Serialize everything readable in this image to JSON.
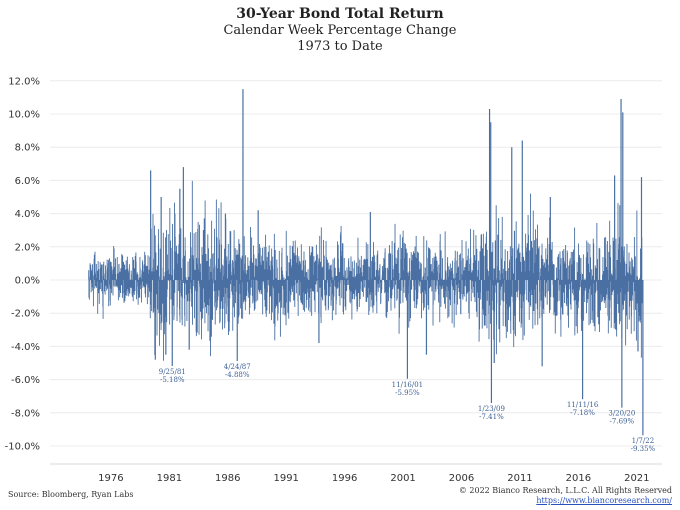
{
  "header": {
    "title": "30-Year Bond Total Return",
    "subtitle": "Calendar Week Percentage Change",
    "period": "1973 to Date"
  },
  "footer": {
    "source": "Source: Bloomberg, Ryan Labs",
    "copyright": "© 2022 Bianco Research, L.L.C. All Rights Reserved",
    "website": "https://www.biancoresearch.com/"
  },
  "chart_data": {
    "type": "bar",
    "series_color": "#4a70a3",
    "x_range": [
      1973.0,
      2022.2
    ],
    "ylim": [
      -11,
      13
    ],
    "yticks": [
      -10,
      -8,
      -6,
      -4,
      -2,
      0,
      2,
      4,
      6,
      8,
      10,
      12
    ],
    "ytick_labels": [
      "-10.0%",
      "-8.0%",
      "-6.0%",
      "-4.0%",
      "-2.0%",
      "0.0%",
      "2.0%",
      "4.0%",
      "6.0%",
      "8.0%",
      "10.0%",
      "12.0%"
    ],
    "xticks": [
      1976,
      1981,
      1986,
      1991,
      1996,
      2001,
      2006,
      2011,
      2016,
      2021
    ],
    "xtick_labels": [
      "1976",
      "1981",
      "1986",
      "1991",
      "1996",
      "2001",
      "2006",
      "2011",
      "2016",
      "2021"
    ],
    "grid": true,
    "volatility_regimes": [
      {
        "start": 1973.0,
        "end": 1979.8,
        "amplitude": 0.9
      },
      {
        "start": 1979.8,
        "end": 1986.0,
        "amplitude": 2.3
      },
      {
        "start": 1986.0,
        "end": 1988.0,
        "amplitude": 1.8
      },
      {
        "start": 1988.0,
        "end": 1994.0,
        "amplitude": 1.4
      },
      {
        "start": 1994.0,
        "end": 2008.0,
        "amplitude": 1.3
      },
      {
        "start": 2008.0,
        "end": 2013.0,
        "amplitude": 2.0
      },
      {
        "start": 2013.0,
        "end": 2019.0,
        "amplitude": 1.6
      },
      {
        "start": 2019.0,
        "end": 2020.6,
        "amplitude": 2.4
      },
      {
        "start": 2020.6,
        "end": 2022.2,
        "amplitude": 1.8
      }
    ],
    "notable_spikes": [
      {
        "x": 1979.9,
        "y": 6.6
      },
      {
        "x": 1980.3,
        "y": -4.8
      },
      {
        "x": 1980.8,
        "y": 5.0
      },
      {
        "x": 1981.2,
        "y": -4.5
      },
      {
        "x": 1982.4,
        "y": 5.5
      },
      {
        "x": 1982.7,
        "y": 6.8
      },
      {
        "x": 1983.2,
        "y": -4.2
      },
      {
        "x": 1987.8,
        "y": 11.5
      },
      {
        "x": 1986.3,
        "y": 4.0
      },
      {
        "x": 1989.1,
        "y": 4.2
      },
      {
        "x": 1994.3,
        "y": -3.8
      },
      {
        "x": 1998.7,
        "y": 4.1
      },
      {
        "x": 2003.5,
        "y": -4.5
      },
      {
        "x": 2008.9,
        "y": 10.3
      },
      {
        "x": 2009.0,
        "y": 9.5
      },
      {
        "x": 2009.3,
        "y": -5.0
      },
      {
        "x": 2010.8,
        "y": 8.0
      },
      {
        "x": 2011.7,
        "y": 8.4
      },
      {
        "x": 2013.4,
        "y": -5.2
      },
      {
        "x": 2014.1,
        "y": 5.0
      },
      {
        "x": 2019.6,
        "y": 6.3
      },
      {
        "x": 2020.15,
        "y": 10.9
      },
      {
        "x": 2020.3,
        "y": 10.1
      },
      {
        "x": 2021.9,
        "y": 6.2
      },
      {
        "x": 2021.6,
        "y": -4.3
      }
    ],
    "annotations": [
      {
        "x": 1981.75,
        "y": -5.18,
        "date": "9/25/81",
        "value": "-5.18%"
      },
      {
        "x": 1987.31,
        "y": -4.88,
        "date": "4/24/87",
        "value": "-4.88%"
      },
      {
        "x": 2001.87,
        "y": -5.95,
        "date": "11/16/01",
        "value": "-5.95%"
      },
      {
        "x": 2009.06,
        "y": -7.41,
        "date": "1/23/09",
        "value": "-7.41%"
      },
      {
        "x": 2016.86,
        "y": -7.18,
        "date": "11/11/16",
        "value": "-7.18%"
      },
      {
        "x": 2020.22,
        "y": -7.69,
        "date": "3/20/20",
        "value": "-7.69%"
      },
      {
        "x": 2022.02,
        "y": -9.35,
        "date": "1/7/22",
        "value": "-9.35%"
      }
    ]
  }
}
